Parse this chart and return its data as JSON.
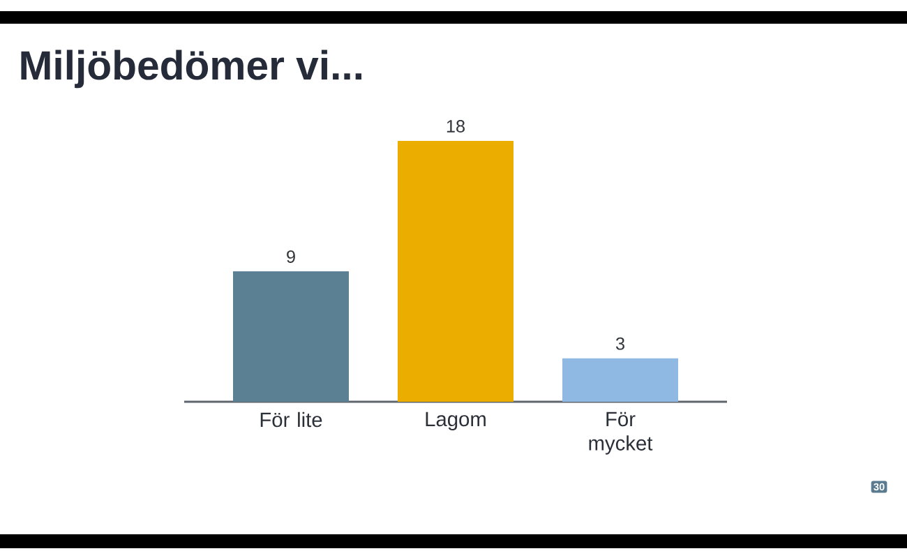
{
  "chart_data": {
    "type": "bar",
    "title": "Miljöbedömer vi...",
    "categories": [
      "För lite",
      "Lagom",
      "För mycket"
    ],
    "values": [
      9,
      18,
      3
    ],
    "colors": [
      "#5b7f93",
      "#ebad00",
      "#8fb8e3"
    ],
    "data_labels": true,
    "annotations": [
      "30"
    ]
  }
}
